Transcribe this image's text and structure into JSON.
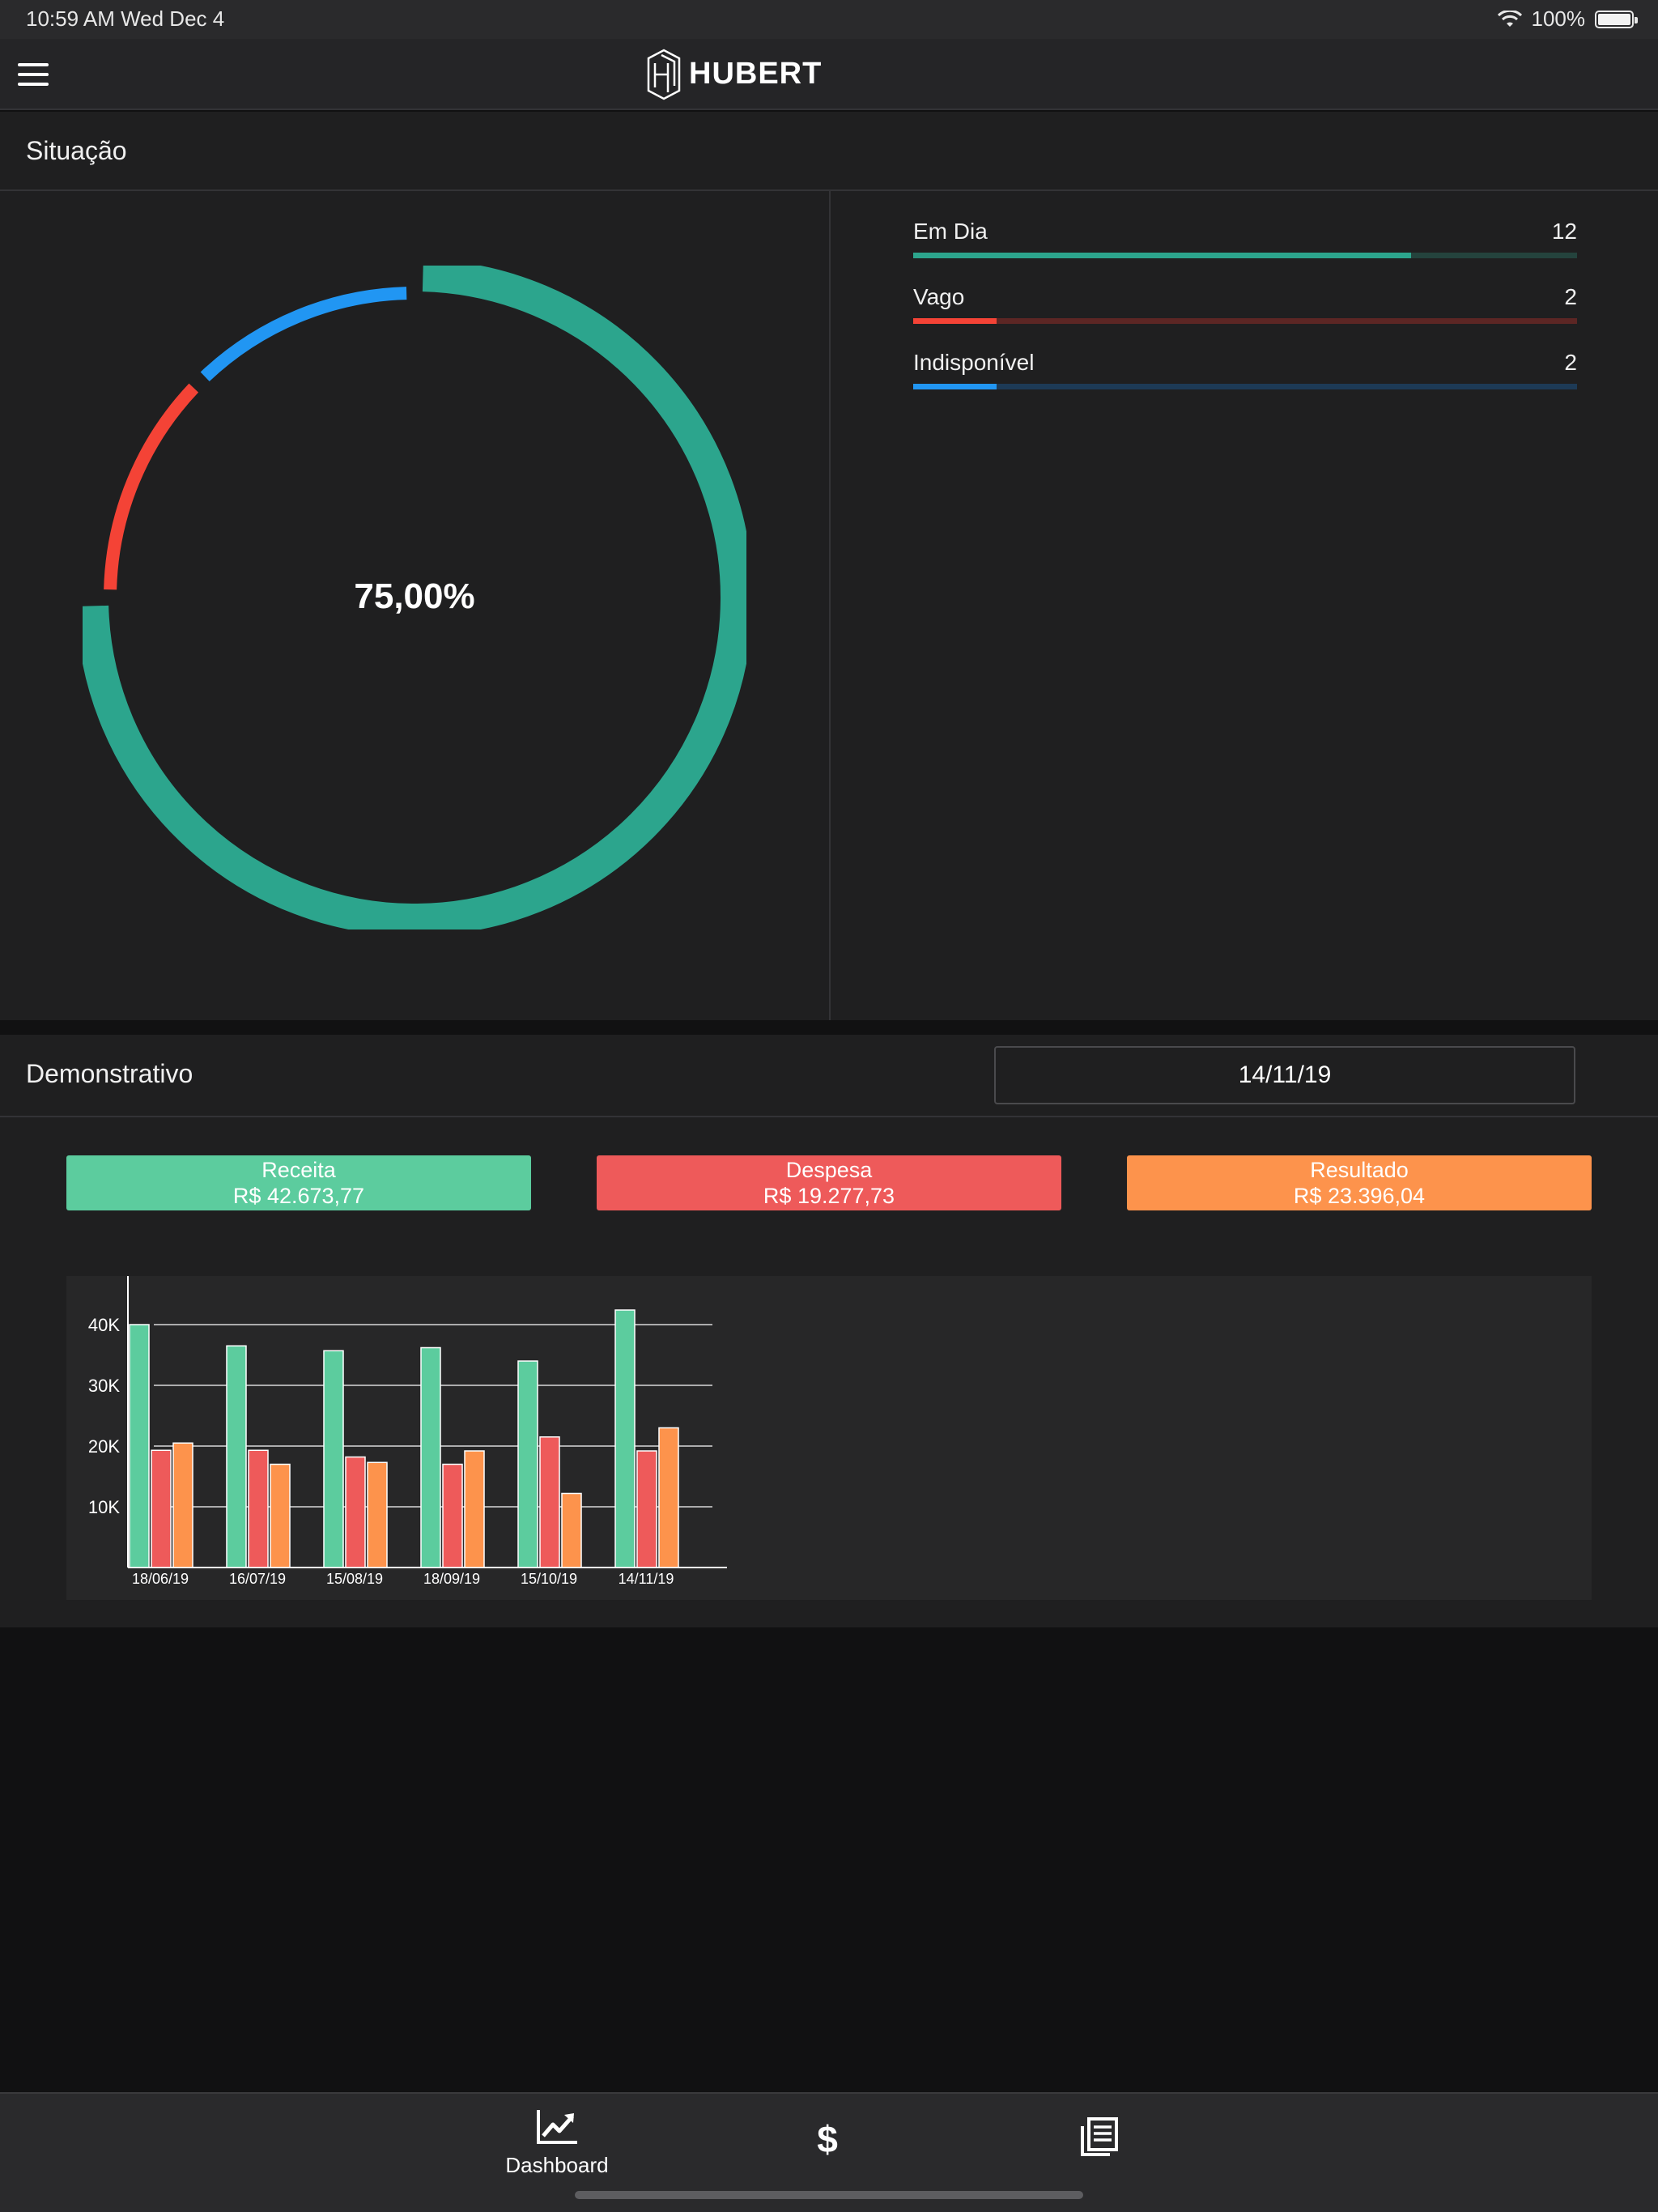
{
  "status_bar": {
    "time": "10:59 AM   Wed Dec 4",
    "battery": "100%"
  },
  "app": {
    "brand": "HUBERT"
  },
  "situacao": {
    "title": "Situação",
    "donut_label": "75,00%",
    "legend": [
      {
        "label": "Em Dia",
        "count": "12",
        "fraction": 0.75,
        "color": "#2ca58d",
        "track": "#24433d"
      },
      {
        "label": "Vago",
        "count": "2",
        "fraction": 0.125,
        "color": "#f44336",
        "track": "#5c2624"
      },
      {
        "label": "Indisponível",
        "count": "2",
        "fraction": 0.125,
        "color": "#2196f3",
        "track": "#1d3a56"
      }
    ]
  },
  "demonstrativo": {
    "title": "Demonstrativo",
    "date": "14/11/19",
    "kpis": [
      {
        "title": "Receita",
        "value": "R$ 42.673,77",
        "color": "#5ccc9e"
      },
      {
        "title": "Despesa",
        "value": "R$ 19.277,73",
        "color": "#ee5a5a"
      },
      {
        "title": "Resultado",
        "value": "R$ 23.396,04",
        "color": "#fd934c"
      }
    ]
  },
  "chart_data": {
    "type": "bar",
    "categories": [
      "18/06/19",
      "16/07/19",
      "15/08/19",
      "18/09/19",
      "15/10/19",
      "14/11/19"
    ],
    "series": [
      {
        "values": [
          40000,
          36500,
          35700,
          36200,
          34000,
          42400
        ],
        "color": "#5ccc9e"
      },
      {
        "values": [
          19300,
          19300,
          18200,
          17000,
          21500,
          19200
        ],
        "color": "#ee5a5a"
      },
      {
        "values": [
          20500,
          17000,
          17300,
          19200,
          12200,
          23000
        ],
        "color": "#fd934c"
      }
    ],
    "yticks": [
      "10K",
      "20K",
      "30K",
      "40K"
    ],
    "ylim": [
      0,
      48000
    ],
    "grid": true
  },
  "tabbar": {
    "tabs": [
      {
        "label": "Dashboard"
      },
      {
        "label": ""
      },
      {
        "label": ""
      }
    ]
  }
}
